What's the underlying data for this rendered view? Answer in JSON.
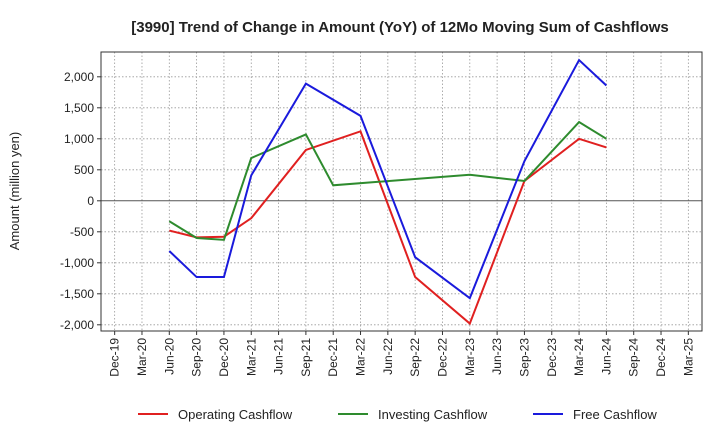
{
  "chart_data": {
    "type": "line",
    "title": "[3990]  Trend of Change in Amount (YoY) of 12Mo Moving Sum of Cashflows",
    "xlabel": "",
    "ylabel": "Amount (million yen)",
    "ylim": [
      -2100,
      2400
    ],
    "yticks": [
      -2000,
      -1500,
      -1000,
      -500,
      0,
      500,
      1000,
      1500,
      2000
    ],
    "ytick_labels": [
      "-2,000",
      "-1,500",
      "-1,000",
      "-500",
      "0",
      "500",
      "1,000",
      "1,500",
      "2,000"
    ],
    "categories": [
      "Dec-19",
      "Mar-20",
      "Jun-20",
      "Sep-20",
      "Dec-20",
      "Mar-21",
      "Jun-21",
      "Sep-21",
      "Dec-21",
      "Mar-22",
      "Jun-22",
      "Sep-22",
      "Dec-22",
      "Mar-23",
      "Jun-23",
      "Sep-23",
      "Dec-23",
      "Mar-24",
      "Jun-24",
      "Sep-24",
      "Dec-24",
      "Mar-25"
    ],
    "grid": true,
    "legend_position": "bottom",
    "series": [
      {
        "name": "Operating Cashflow",
        "color": "#e02020",
        "values": [
          null,
          null,
          -480,
          -590,
          -580,
          -280,
          null,
          820,
          null,
          1120,
          null,
          -1230,
          null,
          -1980,
          null,
          320,
          null,
          1000,
          860,
          null,
          null,
          null
        ]
      },
      {
        "name": "Investing Cashflow",
        "color": "#2e8b2e",
        "values": [
          null,
          null,
          -330,
          -600,
          -630,
          690,
          null,
          1070,
          250,
          null,
          null,
          null,
          null,
          420,
          null,
          320,
          null,
          1270,
          1000,
          null,
          null,
          null
        ]
      },
      {
        "name": "Free Cashflow",
        "color": "#1a1adc",
        "values": [
          null,
          null,
          -810,
          -1230,
          -1230,
          410,
          null,
          1890,
          null,
          1370,
          null,
          -910,
          null,
          -1570,
          null,
          640,
          null,
          2270,
          1860,
          null,
          null,
          null
        ]
      }
    ]
  }
}
